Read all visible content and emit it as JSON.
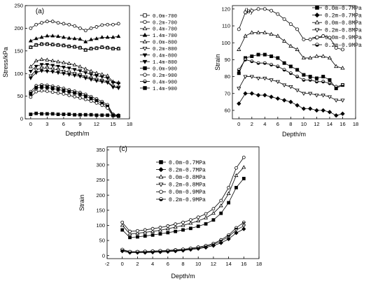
{
  "chart_data": [
    {
      "panel": "(a)",
      "type": "line",
      "xlabel": "Depth/m",
      "ylabel": "Stress/kPa",
      "xlim": [
        -1,
        18
      ],
      "ylim": [
        0,
        250
      ],
      "xticks": [
        0,
        3,
        6,
        9,
        12,
        15,
        18
      ],
      "yticks": [
        0,
        50,
        100,
        150,
        200,
        250
      ],
      "grid": false,
      "legend_position": "right",
      "x": [
        0,
        1,
        2,
        3,
        4,
        5,
        6,
        7,
        8,
        9,
        10,
        11,
        12,
        13,
        14,
        15,
        16
      ],
      "series": [
        {
          "name": "0.0m-700",
          "marker": "square-open",
          "values": [
            158,
            163,
            165,
            165,
            164,
            163,
            162,
            160,
            159,
            157,
            152,
            155,
            156,
            158,
            157,
            155,
            155
          ]
        },
        {
          "name": "0.2m-700",
          "marker": "circle-open",
          "values": [
            200,
            208,
            212,
            215,
            215,
            212,
            210,
            208,
            205,
            200,
            195,
            200,
            203,
            207,
            208,
            208,
            210
          ]
        },
        {
          "name": "0.4m-700",
          "marker": "triangle-open",
          "values": [
            158,
            163,
            165,
            165,
            164,
            163,
            162,
            160,
            159,
            157,
            152,
            155,
            156,
            158,
            157,
            155,
            155
          ]
        },
        {
          "name": "1.4m-700",
          "marker": "triangle-filled",
          "values": [
            172,
            177,
            180,
            183,
            183,
            182,
            180,
            178,
            177,
            176,
            170,
            175,
            177,
            180,
            180,
            180,
            182
          ]
        },
        {
          "name": "0.0m-800",
          "marker": "triangle-open",
          "values": [
            115,
            128,
            131,
            130,
            128,
            126,
            124,
            122,
            119,
            115,
            110,
            105,
            101,
            98,
            95,
            82,
            80
          ]
        },
        {
          "name": "0.2m-800",
          "marker": "triangle-down-open",
          "values": [
            95,
            108,
            112,
            112,
            110,
            108,
            105,
            103,
            100,
            97,
            93,
            90,
            87,
            85,
            82,
            72,
            70
          ]
        },
        {
          "name": "0.4m-800",
          "marker": "triangle-down-filled",
          "values": [
            105,
            116,
            120,
            120,
            118,
            116,
            114,
            112,
            109,
            106,
            102,
            98,
            95,
            93,
            90,
            80,
            78
          ]
        },
        {
          "name": "1.4m-800",
          "marker": "triangle-down-filled",
          "values": [
            90,
            102,
            106,
            105,
            104,
            102,
            100,
            98,
            96,
            94,
            90,
            87,
            84,
            82,
            80,
            70,
            68
          ]
        },
        {
          "name": "0.0m-900",
          "marker": "square-filled",
          "values": [
            55,
            68,
            70,
            69,
            67,
            65,
            62,
            60,
            57,
            54,
            50,
            45,
            40,
            34,
            28,
            8,
            6
          ]
        },
        {
          "name": "0.2m-900",
          "marker": "circle-open",
          "values": [
            48,
            60,
            62,
            61,
            59,
            57,
            55,
            52,
            49,
            46,
            43,
            39,
            35,
            30,
            24,
            6,
            5
          ]
        },
        {
          "name": "0.4m-900",
          "marker": "circle-half",
          "values": [
            60,
            73,
            75,
            74,
            72,
            70,
            67,
            64,
            61,
            58,
            54,
            49,
            44,
            38,
            31,
            10,
            8
          ]
        },
        {
          "name": "1.4m-900",
          "marker": "square-filled",
          "values": [
            10,
            12,
            11,
            11,
            11,
            10,
            10,
            10,
            9,
            9,
            9,
            9,
            8,
            8,
            8,
            8,
            7
          ]
        }
      ]
    },
    {
      "panel": "(b)",
      "type": "line",
      "xlabel": "Depth/m",
      "ylabel": "Strain",
      "xlim": [
        -1,
        18
      ],
      "ylim": [
        55,
        122
      ],
      "xticks": [
        0,
        2,
        4,
        6,
        8,
        10,
        12,
        14,
        16,
        18
      ],
      "yticks": [
        60,
        70,
        80,
        90,
        100,
        110,
        120
      ],
      "grid": false,
      "legend_position": "top-right",
      "x": [
        0,
        1,
        2,
        3,
        4,
        5,
        6,
        7,
        8,
        9,
        10,
        11,
        12,
        13,
        14,
        15,
        16
      ],
      "series": [
        {
          "name": "0.0m-0.7MPa",
          "marker": "square-filled",
          "values": [
            82,
            91,
            92,
            93,
            93,
            92,
            91,
            88,
            86,
            84,
            81,
            80,
            79,
            80,
            78,
            73,
            75
          ]
        },
        {
          "name": "0.2m-0.7MPa",
          "marker": "diamond-filled",
          "values": [
            64,
            70,
            70,
            69,
            69,
            68,
            67,
            66,
            65,
            63,
            61,
            61,
            60,
            60,
            59,
            57,
            58
          ]
        },
        {
          "name": "0.0m-0.8MPa",
          "marker": "triangle-open",
          "values": [
            96,
            104,
            106,
            106,
            106,
            105,
            104,
            101,
            98,
            96,
            91,
            91,
            92,
            92,
            91,
            86,
            85
          ]
        },
        {
          "name": "0.2m-0.8MPa",
          "marker": "triangle-down-open",
          "values": [
            73,
            80,
            80,
            79,
            79,
            78,
            77,
            75,
            74,
            72,
            70,
            70,
            69,
            69,
            68,
            66,
            66
          ]
        },
        {
          "name": "0.0m-0.9MPa",
          "marker": "circle-open",
          "values": [
            108,
            118,
            119,
            120,
            120,
            119,
            117,
            114,
            111,
            108,
            102,
            102,
            103,
            104,
            103,
            97,
            96
          ]
        },
        {
          "name": "0.2m-0.9MPa",
          "marker": "circle-half",
          "values": [
            84,
            90,
            89,
            88,
            88,
            87,
            86,
            84,
            82,
            80,
            78,
            78,
            77,
            77,
            76,
            74,
            75
          ]
        }
      ]
    },
    {
      "panel": "(c)",
      "type": "line",
      "xlabel": "Depth/m",
      "ylabel": "Strain",
      "xlim": [
        -2,
        18
      ],
      "ylim": [
        -10,
        360
      ],
      "xticks": [
        -2,
        0,
        2,
        4,
        6,
        8,
        10,
        12,
        14,
        16,
        18
      ],
      "yticks": [
        0,
        50,
        100,
        150,
        200,
        250,
        300,
        350
      ],
      "grid": false,
      "legend_position": "top-left",
      "x": [
        0,
        1,
        2,
        3,
        4,
        5,
        6,
        7,
        8,
        9,
        10,
        11,
        12,
        13,
        14,
        15,
        16
      ],
      "series": [
        {
          "name": "0.0m-0.7MPa",
          "marker": "square-filled",
          "values": [
            85,
            60,
            62,
            65,
            68,
            72,
            76,
            80,
            85,
            90,
            97,
            105,
            118,
            140,
            175,
            225,
            255
          ]
        },
        {
          "name": "0.2m-0.7MPa",
          "marker": "diamond-filled",
          "values": [
            15,
            10,
            10,
            10,
            11,
            12,
            13,
            15,
            17,
            20,
            23,
            27,
            33,
            42,
            55,
            75,
            88
          ]
        },
        {
          "name": "0.0m-0.8MPa",
          "marker": "triangle-open",
          "values": [
            100,
            72,
            74,
            77,
            80,
            84,
            89,
            94,
            100,
            107,
            115,
            125,
            140,
            165,
            205,
            265,
            292
          ]
        },
        {
          "name": "0.2m-0.8MPa",
          "marker": "triangle-down-open",
          "values": [
            18,
            12,
            12,
            12,
            13,
            14,
            15,
            17,
            19,
            22,
            25,
            30,
            37,
            48,
            63,
            85,
            98
          ]
        },
        {
          "name": "0.0m-0.9MPa",
          "marker": "circle-open",
          "values": [
            110,
            80,
            82,
            85,
            89,
            93,
            98,
            104,
            110,
            118,
            127,
            138,
            155,
            182,
            225,
            290,
            325
          ]
        },
        {
          "name": "0.2m-0.9MPa",
          "marker": "circle-half",
          "values": [
            20,
            13,
            13,
            14,
            15,
            16,
            17,
            19,
            21,
            24,
            28,
            33,
            40,
            52,
            68,
            92,
            110
          ]
        }
      ]
    }
  ]
}
